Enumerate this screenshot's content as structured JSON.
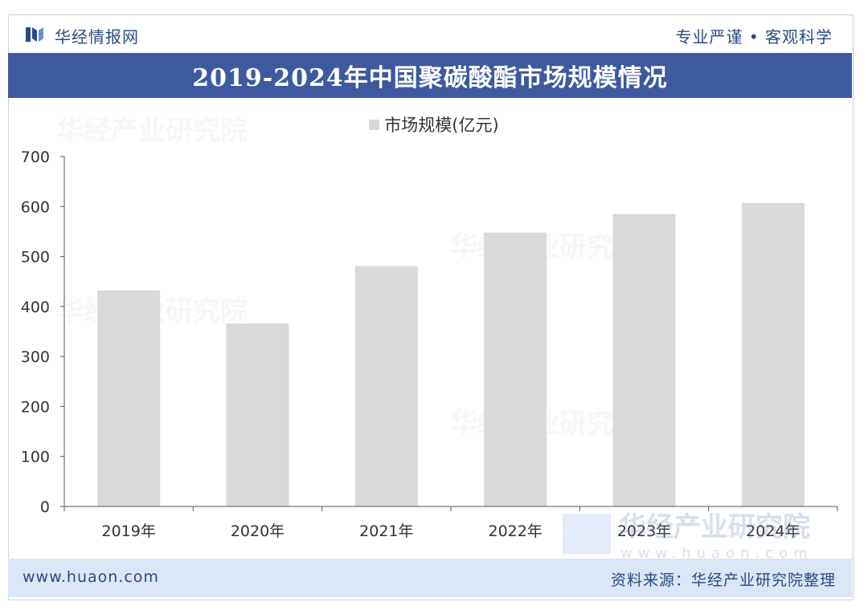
{
  "header": {
    "brand_name": "华经情报网",
    "slogan": "专业严谨 • 客观科学"
  },
  "title": "2019-2024年中国聚碳酸酯市场规模情况",
  "chart_data": {
    "type": "bar",
    "categories": [
      "2019年",
      "2020年",
      "2021年",
      "2022年",
      "2023年",
      "2024年"
    ],
    "series": [
      {
        "name": "市场规模(亿元)",
        "values": [
          432,
          366,
          481,
          548,
          585,
          607
        ],
        "color": "#d9d9d9"
      }
    ],
    "yticks": [
      "0",
      "100",
      "200",
      "300",
      "400",
      "500",
      "600",
      "700"
    ],
    "ylim": [
      0,
      700
    ],
    "legend": "top-center",
    "grid": false
  },
  "watermark": {
    "name": "华经产业研究院",
    "url": "www.huaon.com"
  },
  "footer": {
    "url": "www.huaon.com",
    "source": "资料来源：华经产业研究院整理"
  },
  "colors": {
    "brand": "#2b4a86",
    "title_bar": "#3d5aa0",
    "footer_bg": "#dbe6f6",
    "bar": "#d9d9d9"
  }
}
